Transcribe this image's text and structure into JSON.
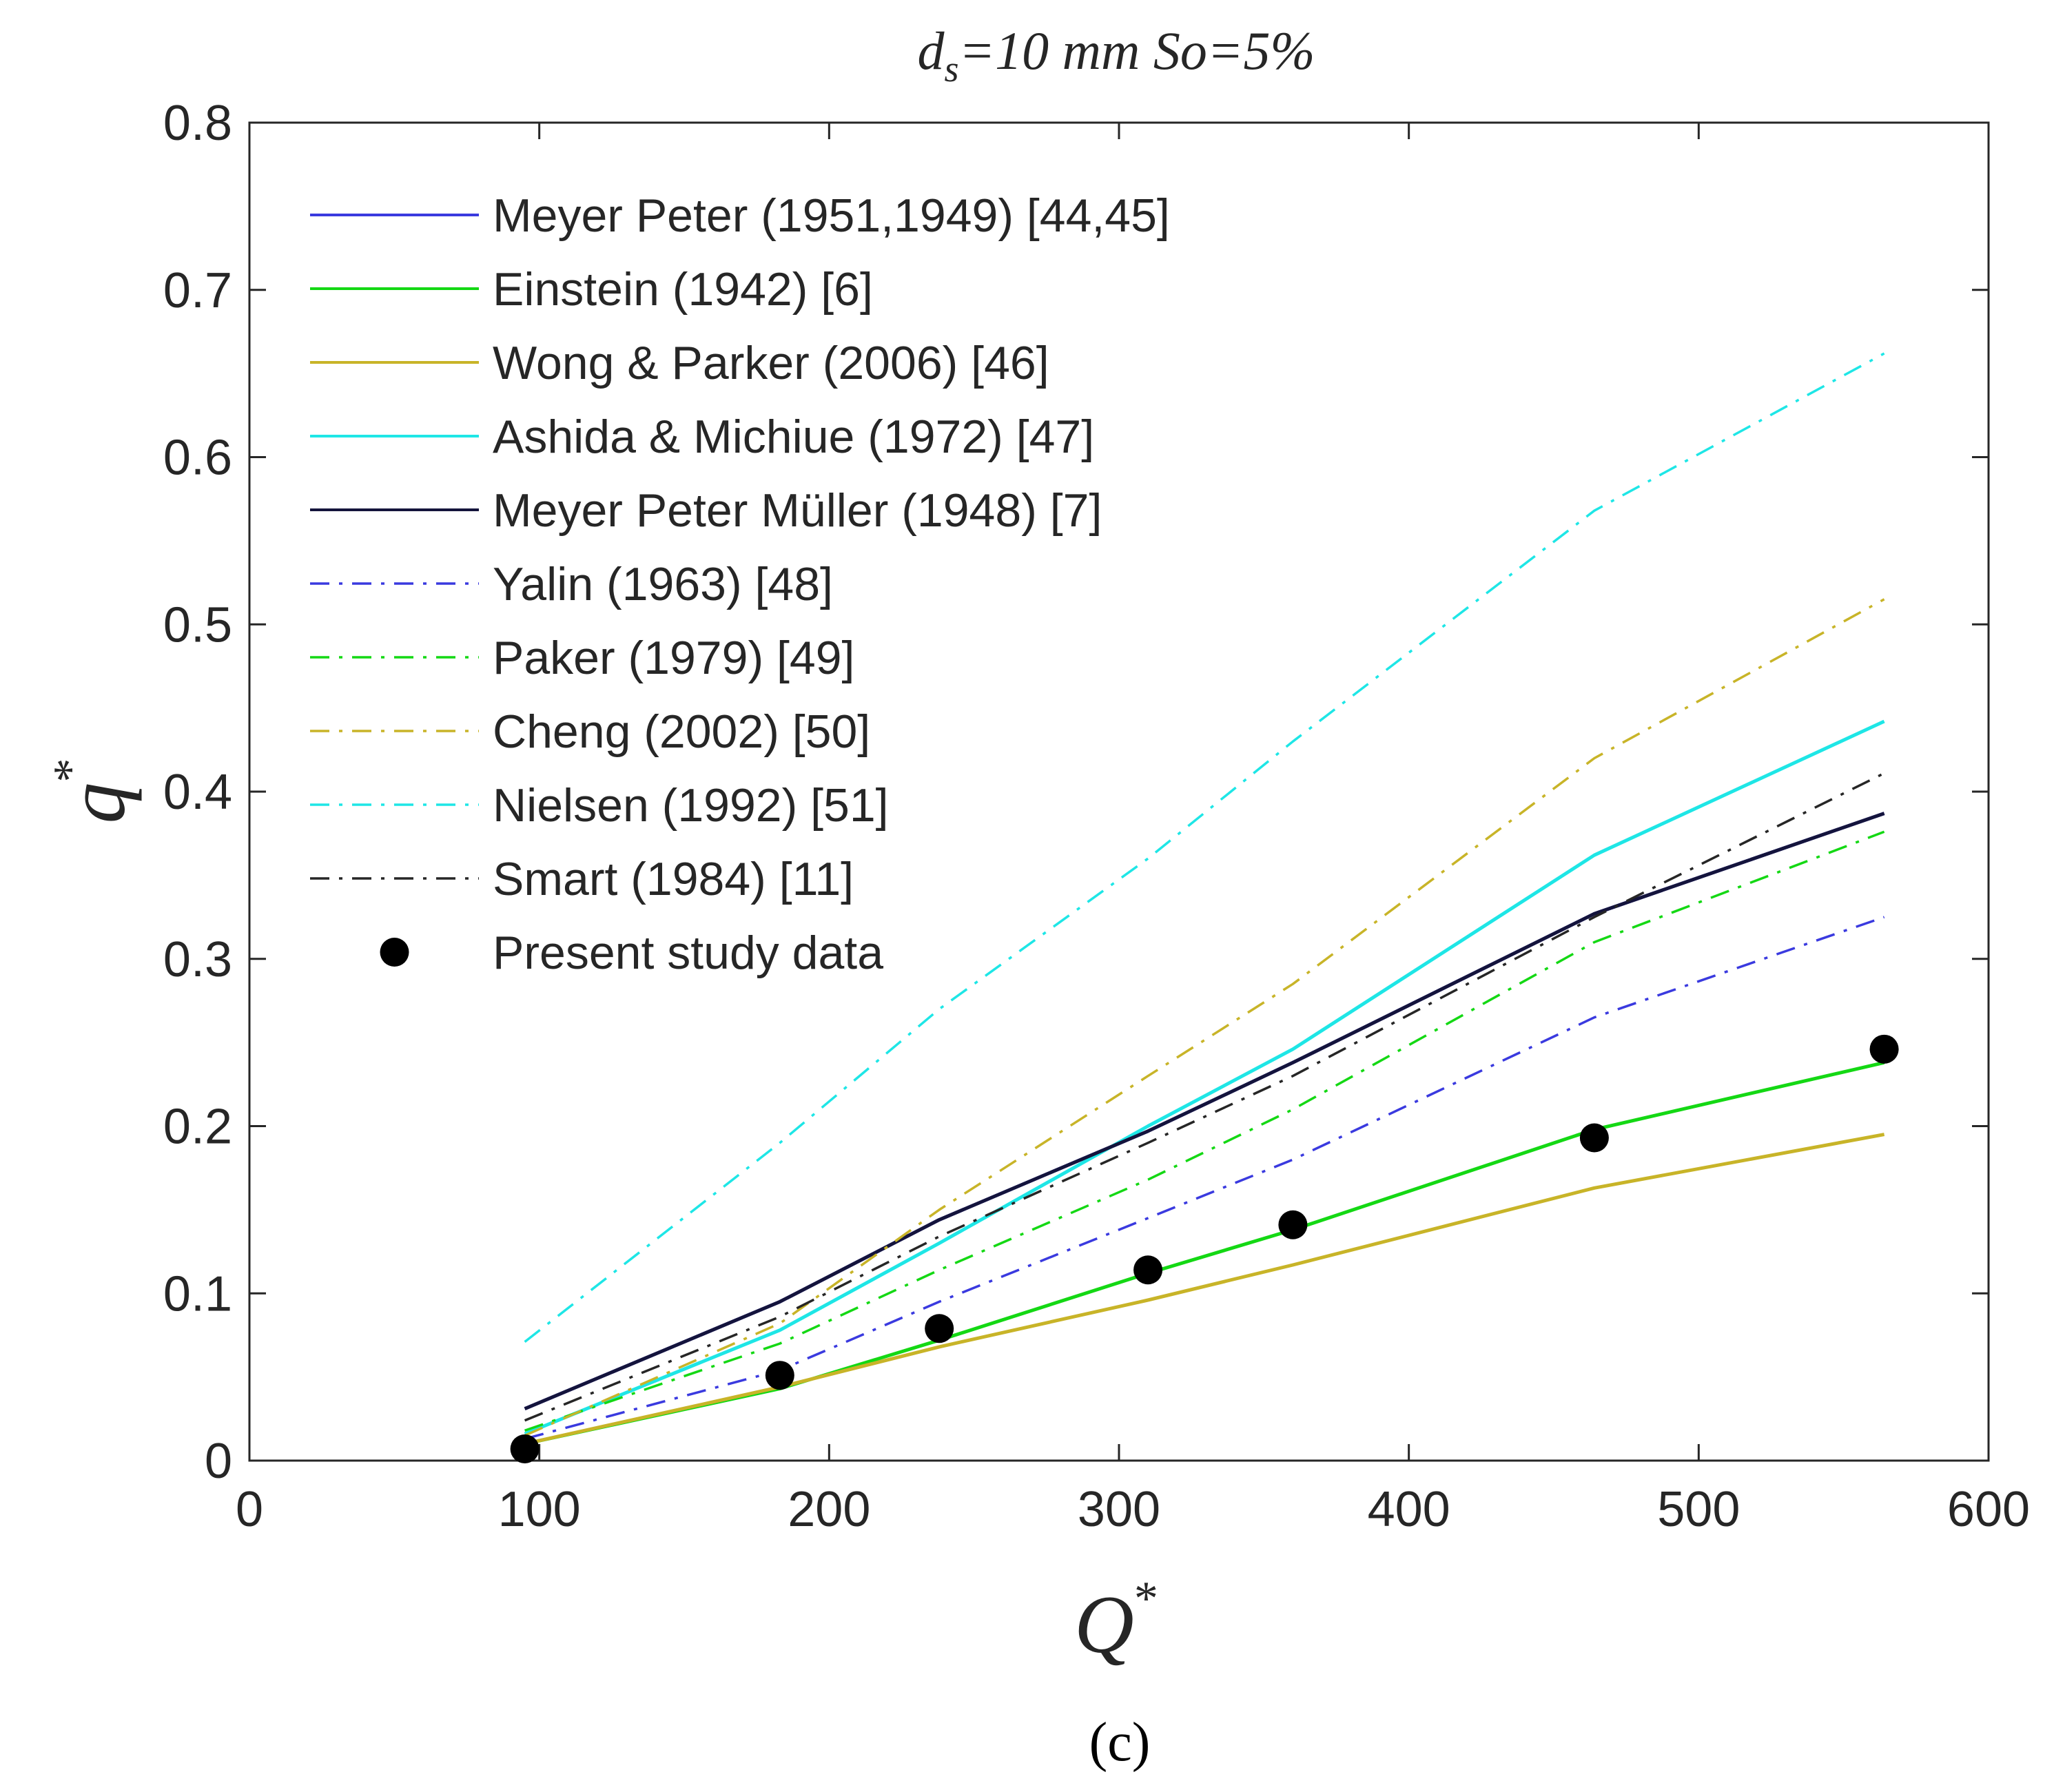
{
  "chart_data": {
    "type": "line",
    "title": {
      "main": "d",
      "subscript": "s",
      "rest": "=10 mm So=5%"
    },
    "xlabel": {
      "main": "Q",
      "sup": "*"
    },
    "ylabel": {
      "main": "q",
      "sup": "*"
    },
    "xlim": [
      0,
      600
    ],
    "ylim": [
      0,
      0.8
    ],
    "x_ticks": [
      0,
      100,
      200,
      300,
      400,
      500,
      600
    ],
    "x_tick_labels": [
      "0",
      "100",
      "200",
      "300",
      "400",
      "500",
      "600"
    ],
    "y_ticks": [
      0,
      0.1,
      0.2,
      0.3,
      0.4,
      0.5,
      0.6,
      0.7,
      0.8
    ],
    "y_tick_labels": [
      "0",
      "0.1",
      "0.2",
      "0.3",
      "0.4",
      "0.5",
      "0.6",
      "0.7",
      "0.8"
    ],
    "grid": false,
    "legend_position": "top-left",
    "x": [
      95,
      183,
      238,
      310,
      360,
      464,
      564
    ],
    "series": [
      {
        "name": "Meyer Peter (1951,1949) [44,45]",
        "color": "#3a3adf",
        "style": "solid",
        "values": [
          0.031,
          0.095,
          0.144,
          0.197,
          0.238,
          0.327,
          0.387
        ]
      },
      {
        "name": "Einstein (1942) [6]",
        "color": "#14d814",
        "style": "solid",
        "values": [
          0.01,
          0.043,
          0.072,
          0.112,
          0.138,
          0.198,
          0.238
        ]
      },
      {
        "name": "Wong & Parker (2006) [46]",
        "color": "#c8b428",
        "style": "solid",
        "values": [
          0.01,
          0.044,
          0.068,
          0.096,
          0.117,
          0.163,
          0.195
        ]
      },
      {
        "name": "Ashida & Michiue (1972) [47]",
        "color": "#1ee6e6",
        "style": "solid",
        "values": [
          0.016,
          0.078,
          0.13,
          0.2,
          0.246,
          0.362,
          0.442
        ]
      },
      {
        "name": "Meyer Peter Müller (1948) [7]",
        "color": "#14143c",
        "style": "solid",
        "values": [
          0.031,
          0.095,
          0.144,
          0.197,
          0.238,
          0.327,
          0.387
        ]
      },
      {
        "name": "Yalin (1963) [48]",
        "color": "#3a3adf",
        "style": "dashdot",
        "values": [
          0.013,
          0.054,
          0.095,
          0.145,
          0.18,
          0.265,
          0.325
        ]
      },
      {
        "name": "Paker (1979) [49]",
        "color": "#14d814",
        "style": "dashdot",
        "values": [
          0.018,
          0.07,
          0.114,
          0.168,
          0.21,
          0.31,
          0.376
        ]
      },
      {
        "name": "Cheng (2002) [50]",
        "color": "#c8b428",
        "style": "dashdot",
        "values": [
          0.015,
          0.082,
          0.15,
          0.23,
          0.285,
          0.42,
          0.515
        ]
      },
      {
        "name": "Nielsen (1992) [51]",
        "color": "#1ee6e6",
        "style": "dashdot",
        "values": [
          0.071,
          0.19,
          0.27,
          0.36,
          0.43,
          0.568,
          0.662
        ]
      },
      {
        "name": "Smart (1984) [11]",
        "color": "#262626",
        "style": "dashdot",
        "values": [
          0.024,
          0.086,
          0.134,
          0.19,
          0.23,
          0.325,
          0.411
        ]
      }
    ],
    "scatter": {
      "name": "Present study data",
      "color": "#000000",
      "points": [
        {
          "x": 95,
          "y": 0.007
        },
        {
          "x": 183,
          "y": 0.051
        },
        {
          "x": 238,
          "y": 0.079
        },
        {
          "x": 310,
          "y": 0.114
        },
        {
          "x": 360,
          "y": 0.141
        },
        {
          "x": 464,
          "y": 0.193
        },
        {
          "x": 564,
          "y": 0.246
        }
      ]
    }
  },
  "caption": "(c)"
}
